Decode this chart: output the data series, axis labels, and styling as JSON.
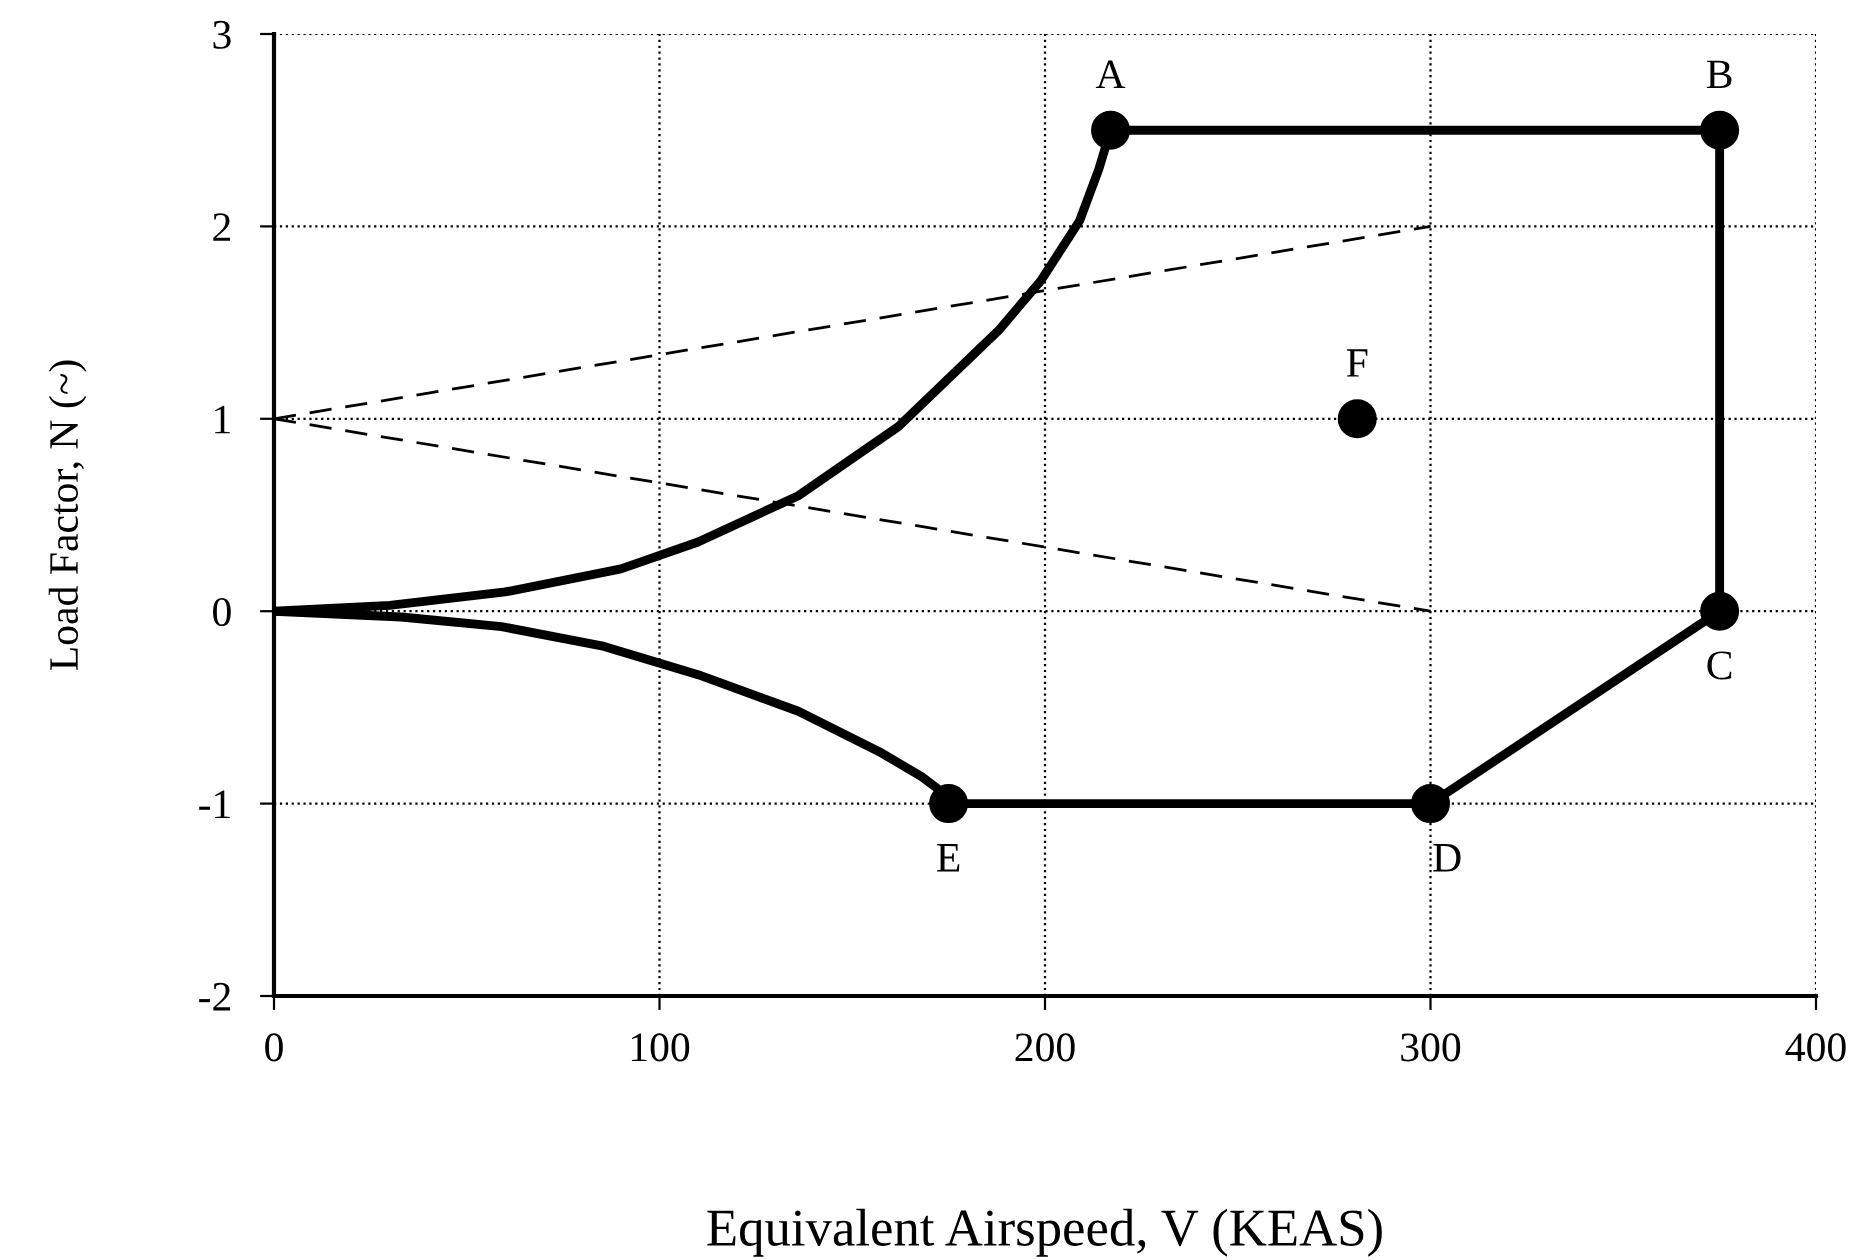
{
  "chart_data": {
    "type": "line",
    "xlabel": "Equivalent Airspeed, V (KEAS)",
    "ylabel": "Load Factor, N (~)",
    "xlim": [
      0,
      400
    ],
    "xticks": [
      0,
      100,
      200,
      300,
      400
    ],
    "ylim": [
      -2,
      3
    ],
    "yticks": [
      -2,
      -1,
      0,
      1,
      2,
      3
    ],
    "grid": true,
    "series": [
      {
        "color": "#000000",
        "line_style": "solid",
        "x": [
          0,
          30,
          60,
          90,
          110,
          136,
          162,
          188,
          199,
          209,
          214,
          217
        ],
        "values": [
          0,
          0.03,
          0.1,
          0.22,
          0.36,
          0.6,
          0.96,
          1.46,
          1.72,
          2.03,
          2.3,
          2.5
        ]
      },
      {
        "color": "#000000",
        "line_style": "solid",
        "x": [
          0,
          33,
          59,
          85,
          110,
          136,
          157,
          168,
          172,
          174,
          175
        ],
        "values": [
          0,
          -0.03,
          -0.08,
          -0.18,
          -0.33,
          -0.52,
          -0.73,
          -0.86,
          -0.92,
          -0.97,
          -1
        ]
      },
      {
        "color": "#000000",
        "line_style": "solid",
        "x": [
          217,
          375,
          375,
          300,
          175
        ],
        "values": [
          2.5,
          2.5,
          0,
          -1,
          -1
        ]
      },
      {
        "color": "#000000",
        "line_style": "dashed",
        "x": [
          0,
          300
        ],
        "values": [
          1,
          2
        ]
      },
      {
        "color": "#000000",
        "line_style": "dashed",
        "x": [
          0,
          300
        ],
        "values": [
          1,
          0
        ]
      },
      {
        "type": "scatter",
        "color": "#000000",
        "marker": "circle",
        "x": [
          217,
          375,
          375,
          300,
          175,
          281
        ],
        "values": [
          2.5,
          2.5,
          0,
          -1,
          -1,
          1
        ]
      }
    ],
    "annotations": [
      {
        "text": "A",
        "x": 217,
        "y": 2.5
      },
      {
        "text": "B",
        "x": 375,
        "y": 2.5
      },
      {
        "text": "C",
        "x": 375,
        "y": 0
      },
      {
        "text": "D",
        "x": 300,
        "y": -1
      },
      {
        "text": "E",
        "x": 175,
        "y": -1
      },
      {
        "text": "F",
        "x": 281,
        "y": 1
      }
    ]
  }
}
